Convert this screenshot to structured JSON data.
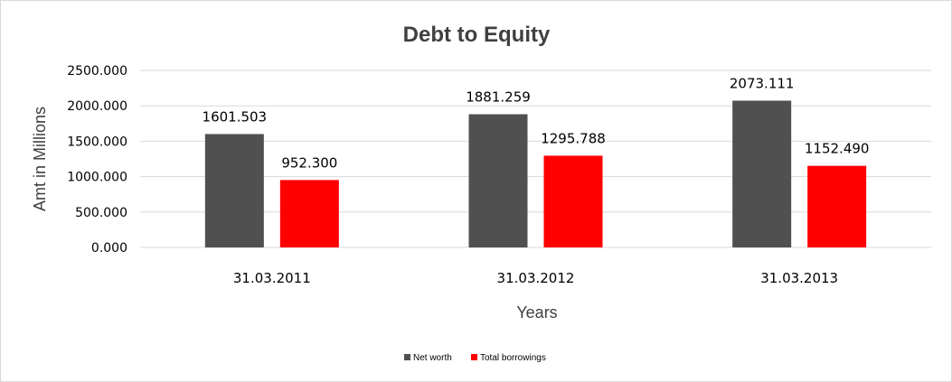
{
  "chart_data": {
    "type": "bar",
    "title": "Debt to Equity",
    "xlabel": "Years",
    "ylabel": "Amt in Millions",
    "categories": [
      "31.03.2011",
      "31.03.2012",
      "31.03.2013"
    ],
    "series": [
      {
        "name": "Net worth",
        "color": "#505050",
        "values": [
          1601.503,
          1881.259,
          2073.111
        ],
        "labels": [
          "1601.503",
          "1881.259",
          "2073.111"
        ]
      },
      {
        "name": "Total borrowings",
        "color": "#ff0000",
        "values": [
          952.3,
          1295.788,
          1152.49
        ],
        "labels": [
          "952.300",
          "1295.788",
          "1152.490"
        ]
      }
    ],
    "yticks": [
      "0.000",
      "500.000",
      "1000.000",
      "1500.000",
      "2000.000",
      "2500.000"
    ],
    "ylim": [
      0,
      2500
    ],
    "grid": true,
    "legend_position": "bottom"
  }
}
